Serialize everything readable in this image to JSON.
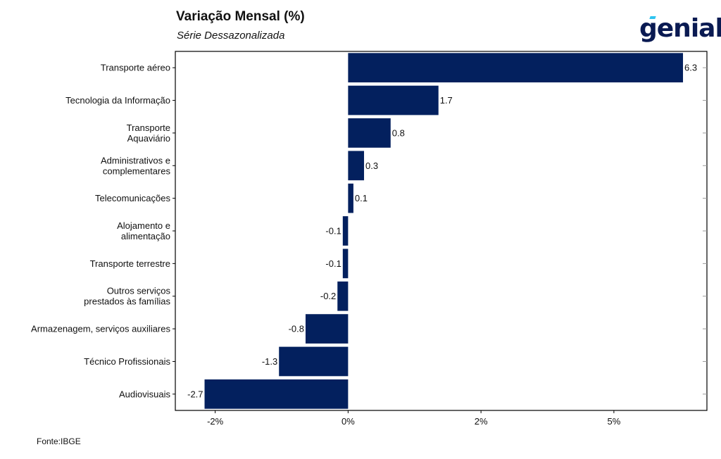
{
  "header": {
    "title": "Variação Mensal (%)",
    "subtitle": "Série Dessazonalizada"
  },
  "logo": {
    "text": "genial",
    "accent_color": "#2ec4f0",
    "color": "#0a1a52"
  },
  "footer": {
    "source": "Fonte:IBGE"
  },
  "colors": {
    "bar": "#03205e",
    "axis": "#000000"
  },
  "chart_data": {
    "type": "bar",
    "orientation": "horizontal",
    "title": "Variação Mensal (%)",
    "subtitle": "Série Dessazonalizada",
    "categories": [
      [
        "Transporte aéreo"
      ],
      [
        "Tecnologia da Informação"
      ],
      [
        "Transporte",
        "Aquaviário"
      ],
      [
        "Administrativos e",
        "complementares"
      ],
      [
        "Telecomunicações"
      ],
      [
        "Alojamento e",
        "alimentação"
      ],
      [
        "Transporte terrestre"
      ],
      [
        "Outros serviços",
        "prestados às famílias"
      ],
      [
        "Armazenagem, serviços auxiliares"
      ],
      [
        "Técnico Profissionais"
      ],
      [
        "Audiovisuais"
      ]
    ],
    "values": [
      6.3,
      1.7,
      0.8,
      0.3,
      0.1,
      -0.1,
      -0.1,
      -0.2,
      -0.8,
      -1.3,
      -2.7
    ],
    "value_labels": [
      "6.3",
      "1.7",
      "0.8",
      "0.3",
      "0.1",
      "-0.1",
      "-0.1",
      "-0.2",
      "-0.8",
      "-1.3",
      "-2.7"
    ],
    "xlim": [
      -3.25,
      6.75
    ],
    "x_ticks": [
      -2.5,
      0,
      2.5,
      5
    ],
    "x_tick_labels": [
      "-2%",
      "0%",
      "2%",
      "5%"
    ],
    "xlabel": "",
    "ylabel": "",
    "grid": true,
    "legend": "none"
  }
}
